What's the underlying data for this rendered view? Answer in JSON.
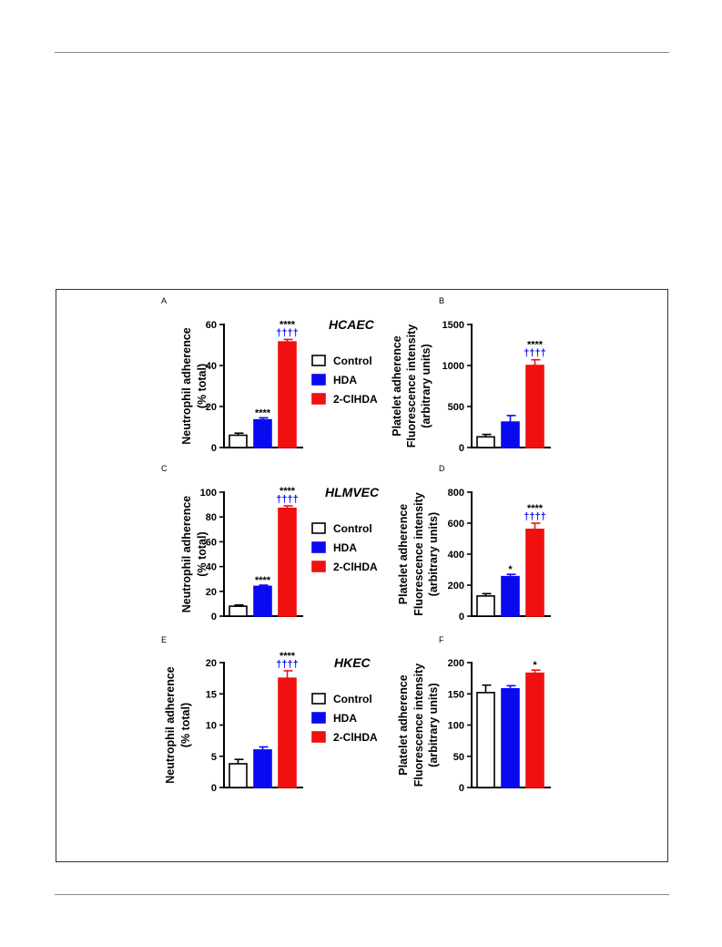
{
  "legend": [
    {
      "label": "Control",
      "color": "#ffffff"
    },
    {
      "label": "HDA",
      "color": "#0a0af0"
    },
    {
      "label": "2-ClHDA",
      "color": "#f01010"
    }
  ],
  "chart_data": [
    {
      "panel": "A",
      "type": "bar",
      "cell_label": "HCAEC",
      "ylabel": [
        "Neutrophil adherence",
        "(% total)"
      ],
      "ylim": [
        0,
        60
      ],
      "yticks": [
        0,
        20,
        40,
        60
      ],
      "categories": [
        "Control",
        "HDA",
        "2-ClHDA"
      ],
      "values": [
        6,
        13.5,
        51.5
      ],
      "errors": [
        1,
        1,
        1.2
      ],
      "sig": [
        "",
        "****",
        "****"
      ],
      "sig2": [
        "",
        "",
        "††††"
      ]
    },
    {
      "panel": "B",
      "type": "bar",
      "cell_label": "",
      "ylabel": [
        "Platelet adherence",
        "Fluorescence intensity",
        "(arbitrary units)"
      ],
      "ylim": [
        0,
        1500
      ],
      "yticks": [
        0,
        500,
        1000,
        1500
      ],
      "categories": [
        "Control",
        "HDA",
        "2-ClHDA"
      ],
      "values": [
        130,
        310,
        1000
      ],
      "errors": [
        30,
        80,
        70
      ],
      "sig": [
        "",
        "",
        "****"
      ],
      "sig2": [
        "",
        "",
        "††††"
      ]
    },
    {
      "panel": "C",
      "type": "bar",
      "cell_label": "HLMVEC",
      "ylabel": [
        "Neutrophil adherence",
        "(% total)"
      ],
      "ylim": [
        0,
        100
      ],
      "yticks": [
        0,
        20,
        40,
        60,
        80,
        100
      ],
      "categories": [
        "Control",
        "HDA",
        "2-ClHDA"
      ],
      "values": [
        8,
        24,
        87
      ],
      "errors": [
        1,
        1,
        2
      ],
      "sig": [
        "",
        "****",
        "****"
      ],
      "sig2": [
        "",
        "",
        "††††"
      ]
    },
    {
      "panel": "D",
      "type": "bar",
      "cell_label": "",
      "ylabel": [
        "Platelet adherence",
        "Fluorescence intensity",
        "(arbitrary units)"
      ],
      "ylim": [
        0,
        800
      ],
      "yticks": [
        0,
        200,
        400,
        600,
        800
      ],
      "categories": [
        "Control",
        "HDA",
        "2-ClHDA"
      ],
      "values": [
        130,
        255,
        560
      ],
      "errors": [
        15,
        15,
        40
      ],
      "sig": [
        "",
        "*",
        "****"
      ],
      "sig2": [
        "",
        "",
        "††††"
      ]
    },
    {
      "panel": "E",
      "type": "bar",
      "cell_label": "HKEC",
      "ylabel": [
        "Neutrophil adherence",
        "(% total)"
      ],
      "ylim": [
        0,
        20
      ],
      "yticks": [
        0,
        5,
        10,
        15,
        20
      ],
      "categories": [
        "Control",
        "HDA",
        "2-ClHDA"
      ],
      "values": [
        3.8,
        6,
        17.5
      ],
      "errors": [
        0.7,
        0.5,
        1.2
      ],
      "sig": [
        "",
        "",
        "****"
      ],
      "sig2": [
        "",
        "",
        "††††"
      ]
    },
    {
      "panel": "F",
      "type": "bar",
      "cell_label": "",
      "ylabel": [
        "Platelet adherence",
        "Fluorescence intensity",
        "(arbitrary units)"
      ],
      "ylim": [
        0,
        200
      ],
      "yticks": [
        0,
        50,
        100,
        150,
        200
      ],
      "categories": [
        "Control",
        "HDA",
        "2-ClHDA"
      ],
      "values": [
        152,
        158,
        183
      ],
      "errors": [
        12,
        5,
        5
      ],
      "sig": [
        "",
        "",
        "*"
      ],
      "sig2": [
        "",
        "",
        ""
      ]
    }
  ]
}
